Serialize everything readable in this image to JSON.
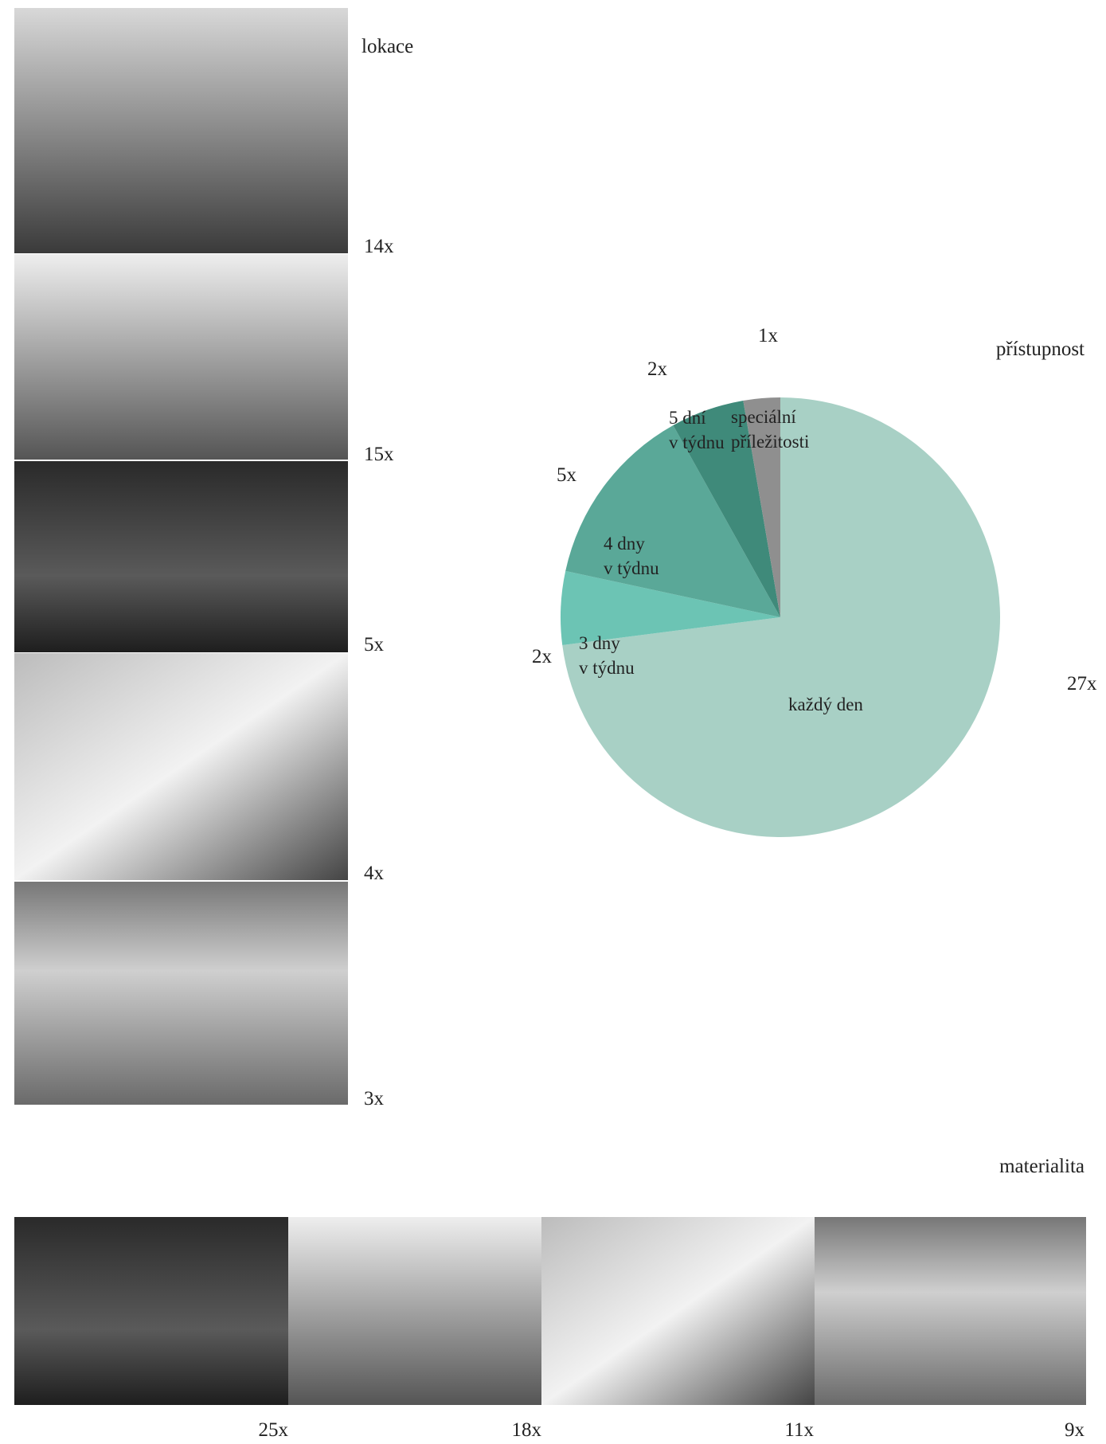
{
  "lokace": {
    "title": "lokace",
    "counts": [
      "14x",
      "15x",
      "5x",
      "4x",
      "3x"
    ]
  },
  "chart_data": {
    "type": "pie",
    "title": "přístupnost",
    "categories": [
      "každý den",
      "3 dny v týdnu",
      "4 dny v týdnu",
      "5 dní v týdnu",
      "speciální příležitosti"
    ],
    "values": [
      27,
      2,
      5,
      2,
      1
    ],
    "value_labels": [
      "27x",
      "2x",
      "5x",
      "2x",
      "1x"
    ],
    "colors": [
      "#a8d0c5",
      "#6cc4b4",
      "#5aa898",
      "#3f8a7a",
      "#8f8f8f"
    ]
  },
  "materialita": {
    "title": "materialita",
    "counts": [
      "25x",
      "18x",
      "11x",
      "9x"
    ]
  }
}
